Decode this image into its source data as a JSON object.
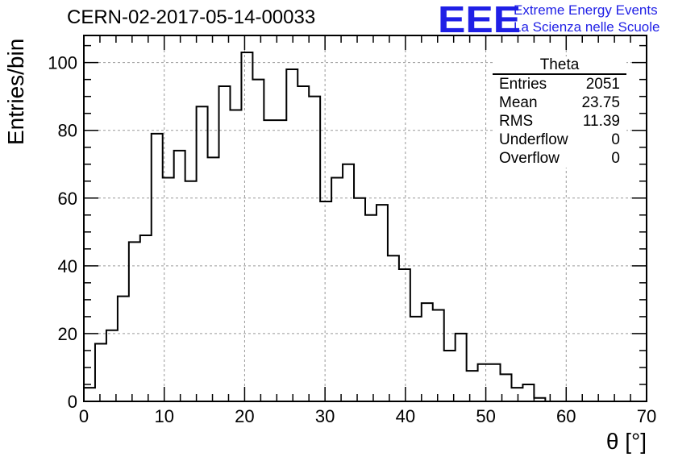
{
  "header": {
    "title": "CERN-02-2017-05-14-00033",
    "logo_text": "EEE",
    "logo_line1": "Extreme Energy Events",
    "logo_line2": "La Scienza nelle Scuole"
  },
  "stats_box": {
    "title": "Theta",
    "rows": [
      {
        "label": "Entries",
        "value": "2051"
      },
      {
        "label": "Mean",
        "value": "23.75"
      },
      {
        "label": "RMS",
        "value": "11.39"
      },
      {
        "label": "Underflow",
        "value": "0"
      },
      {
        "label": "Overflow",
        "value": "0"
      }
    ]
  },
  "colors": {
    "line": "#000000",
    "grid": "#999999",
    "logo": "#1f1fe6"
  },
  "chart_data": {
    "type": "bar",
    "style": "step-histogram",
    "title": "CERN-02-2017-05-14-00033",
    "xlabel": "θ [°]",
    "ylabel": "Entries/bin",
    "xlim": [
      0,
      70
    ],
    "ylim": [
      0,
      108
    ],
    "grid": true,
    "bin_width": 1.4,
    "bin_edges_start": 0,
    "xticks": [
      0,
      10,
      20,
      30,
      40,
      50,
      60,
      70
    ],
    "yticks": [
      0,
      20,
      40,
      60,
      80,
      100
    ],
    "values": [
      4,
      17,
      21,
      31,
      47,
      49,
      79,
      66,
      74,
      65,
      87,
      72,
      93,
      86,
      103,
      95,
      83,
      83,
      98,
      93,
      90,
      59,
      66,
      70,
      60,
      55,
      58,
      43,
      39,
      25,
      29,
      27,
      15,
      20,
      9,
      11,
      11,
      8,
      4,
      5,
      1,
      0,
      0,
      0,
      0,
      0,
      0,
      0,
      0,
      0
    ]
  }
}
